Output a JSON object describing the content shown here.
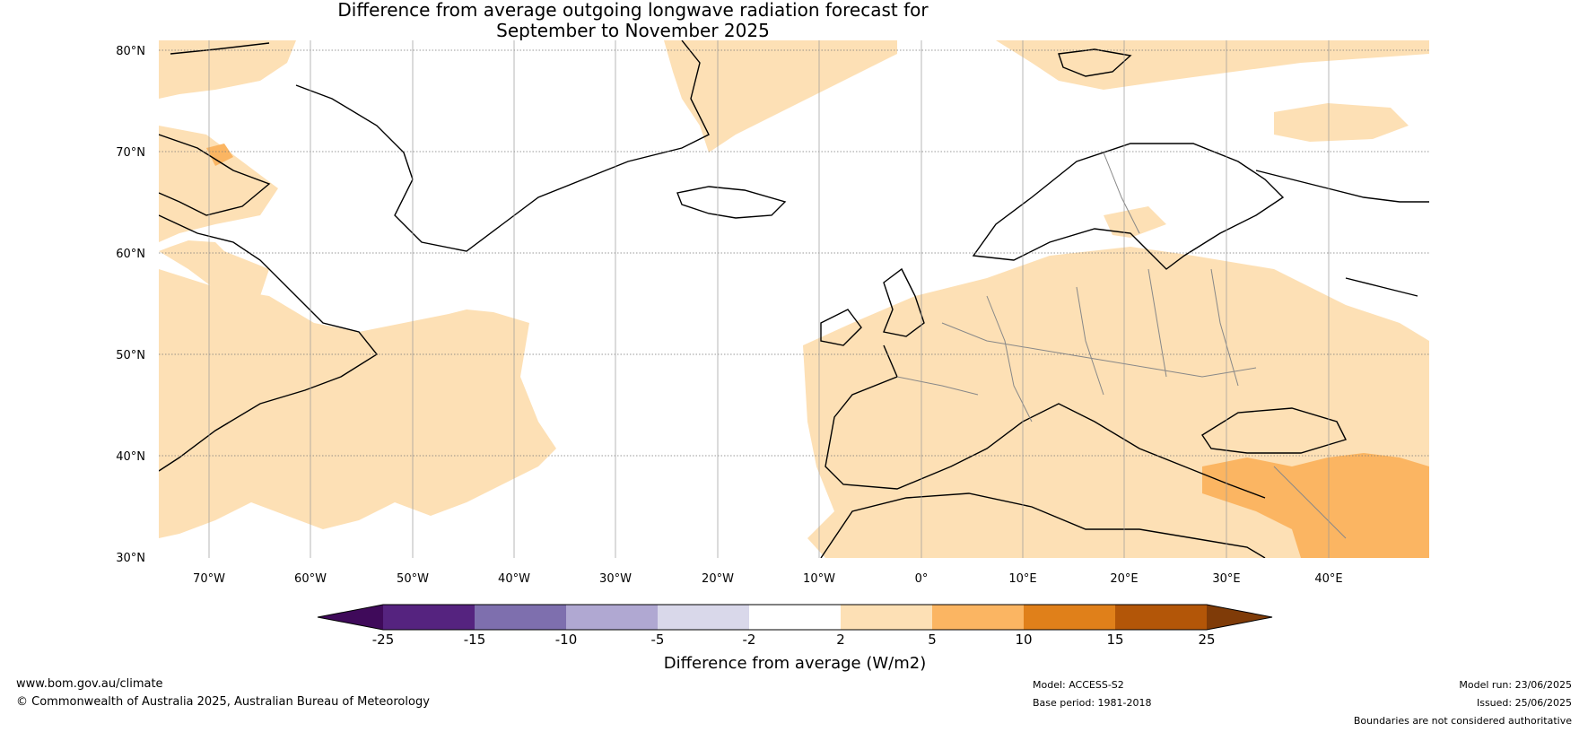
{
  "title_line1": "Difference from average outgoing longwave radiation forecast for",
  "title_line2": "September to November 2025",
  "lat_labels": [
    "80°N",
    "70°N",
    "60°N",
    "50°N",
    "40°N",
    "30°N"
  ],
  "lon_labels": [
    "70°W",
    "60°W",
    "50°W",
    "40°W",
    "30°W",
    "20°W",
    "10°W",
    "0°",
    "10°E",
    "20°E",
    "30°E",
    "40°E"
  ],
  "colorbar": {
    "ticks": [
      "-25",
      "-15",
      "-10",
      "-5",
      "-2",
      "2",
      "5",
      "10",
      "15",
      "25"
    ],
    "label": "Difference from average (W/m2)",
    "colors": {
      "below_-25": "#3f0a5a",
      "-25_-15": "#55237f",
      "-15_-10": "#7e6fae",
      "-10_-5": "#b0a8d2",
      "-5_-2": "#d9d8ea",
      "-2_2": "#ffffff",
      "2_5": "#fde0b5",
      "5_10": "#fbb562",
      "10_15": "#e0801a",
      "15_25": "#b35608",
      "above_25": "#7f3b08"
    }
  },
  "footer": {
    "website": "www.bom.gov.au/climate",
    "copyright": "© Commonwealth of Australia 2025, Australian Bureau of Meteorology",
    "model": "Model: ACCESS-S2",
    "base_period": "Base period: 1981-2018",
    "model_run": "Model run: 23/06/2025",
    "issued": "Issued: 25/06/2025",
    "disclaimer": "Boundaries are not considered authoritative"
  }
}
